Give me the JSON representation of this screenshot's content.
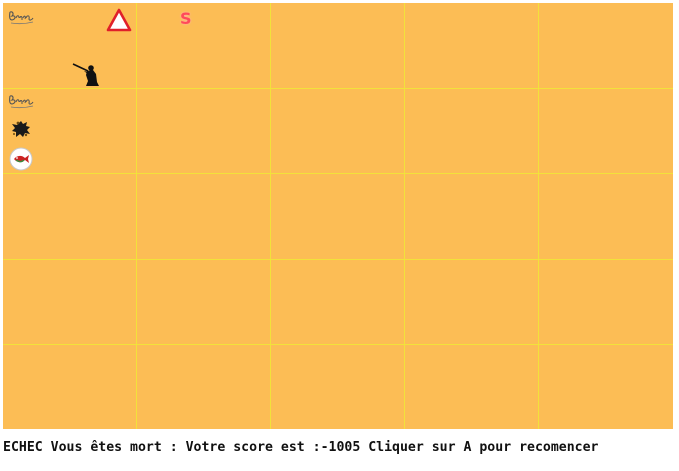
{
  "board": {
    "columns": 5,
    "rows": 5,
    "background": "#fcbd55",
    "grid_color": "#f2e23a"
  },
  "sprites": [
    {
      "name": "brume-icon",
      "cell": [
        0,
        0
      ],
      "color": "#555555"
    },
    {
      "name": "warning-triangle-icon",
      "cell": [
        0,
        0
      ],
      "color": "#e0202a"
    },
    {
      "name": "letter-s-icon",
      "cell": [
        0,
        1
      ],
      "text": "S",
      "color": "#ff4a5a"
    },
    {
      "name": "hunter-icon",
      "cell": [
        0,
        0
      ],
      "color": "#111111"
    },
    {
      "name": "brume-icon",
      "cell": [
        1,
        0
      ],
      "color": "#555555"
    },
    {
      "name": "dead-player-icon",
      "cell": [
        1,
        0
      ],
      "color": "#222222"
    },
    {
      "name": "fish-plate-icon",
      "cell": [
        1,
        0
      ],
      "color": "#cc2222"
    }
  ],
  "status": {
    "message": "ECHEC Vous êtes mort : Votre score est :-1005 Cliquer sur A pour recomencer"
  }
}
